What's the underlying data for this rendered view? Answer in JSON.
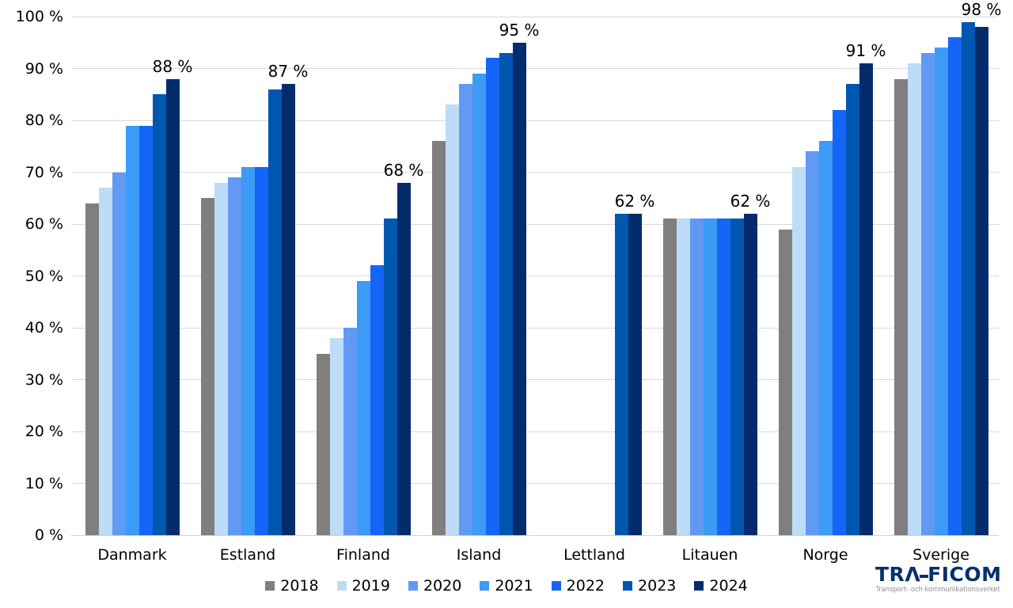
{
  "chart_data": {
    "type": "bar",
    "title": "",
    "xlabel": "",
    "ylabel": "",
    "ylim": [
      0,
      100
    ],
    "grid": true,
    "legend_position": "bottom",
    "y_ticks": [
      "0 %",
      "10 %",
      "20 %",
      "30 %",
      "40 %",
      "50 %",
      "60 %",
      "70 %",
      "80 %",
      "90 %",
      "100 %"
    ],
    "categories": [
      "Danmark",
      "Estland",
      "Finland",
      "Island",
      "Lettland",
      "Litauen",
      "Norge",
      "Sverige"
    ],
    "series": [
      {
        "name": "2018",
        "color": "#7f7f7f",
        "values": [
          64,
          65,
          35,
          76,
          null,
          61,
          59,
          88
        ]
      },
      {
        "name": "2019",
        "color": "#bddcf7",
        "values": [
          67,
          68,
          38,
          83,
          null,
          61,
          71,
          91
        ]
      },
      {
        "name": "2020",
        "color": "#6199f3",
        "values": [
          70,
          69,
          40,
          87,
          null,
          61,
          74,
          93
        ]
      },
      {
        "name": "2021",
        "color": "#3b9bf6",
        "values": [
          79,
          71,
          49,
          89,
          null,
          61,
          76,
          94
        ]
      },
      {
        "name": "2022",
        "color": "#1565f6",
        "values": [
          79,
          71,
          52,
          92,
          null,
          61,
          82,
          96
        ]
      },
      {
        "name": "2023",
        "color": "#0057b0",
        "values": [
          85,
          86,
          61,
          93,
          62,
          61,
          87,
          99
        ]
      },
      {
        "name": "2024",
        "color": "#042c6c",
        "values": [
          88,
          87,
          68,
          95,
          62,
          62,
          91,
          98
        ]
      }
    ],
    "bar_labels": [
      "88 %",
      "87 %",
      "68 %",
      "95 %",
      "62 %",
      "62 %",
      "91 %",
      "98 %"
    ]
  },
  "colors": {
    "gridline": "#d9d9d9",
    "axis_line": "#d0d0d0",
    "text": "#000000",
    "logo": "#04306c",
    "logo_subtitle": "#8f8f8f"
  },
  "logo": {
    "name": "TRAFICOM",
    "subtitle": "Transport- och kommunikationsverket"
  }
}
